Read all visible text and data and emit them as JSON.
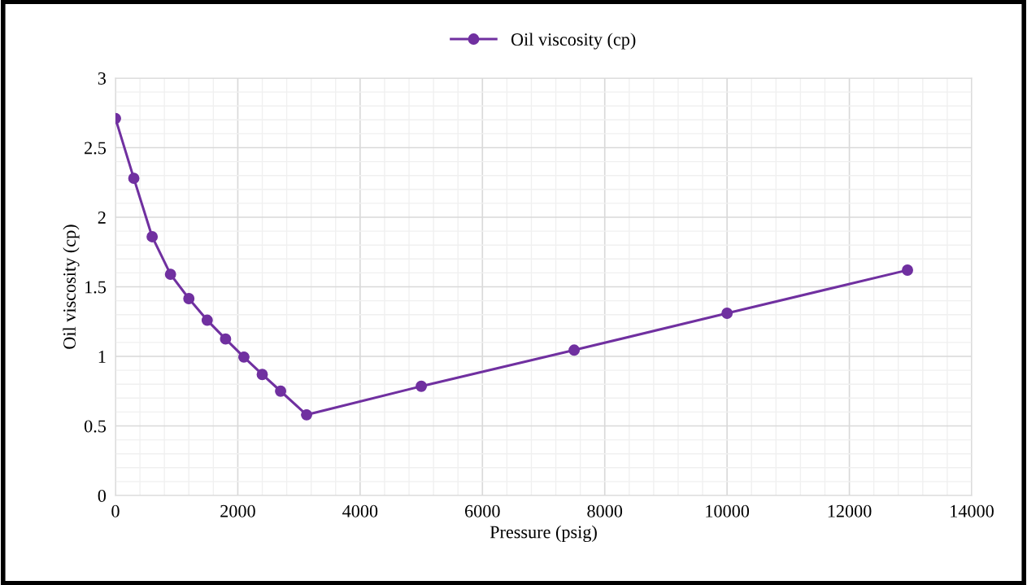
{
  "chart_data": {
    "type": "line",
    "xlabel": "Pressure (psig)",
    "ylabel": "Oil viscosity (cp)",
    "x": [
      0,
      300,
      600,
      900,
      1200,
      1500,
      1800,
      2100,
      2400,
      2700,
      3125,
      5000,
      7500,
      10000,
      12950
    ],
    "series": [
      {
        "name": "Oil viscosity (cp)",
        "color": "#7030a0",
        "values": [
          2.71,
          2.28,
          1.86,
          1.59,
          1.415,
          1.26,
          1.125,
          0.995,
          0.87,
          0.75,
          0.58,
          0.785,
          1.045,
          1.31,
          1.62
        ]
      }
    ],
    "xlim": [
      0,
      14000
    ],
    "xticks": [
      0,
      2000,
      4000,
      6000,
      8000,
      10000,
      12000,
      14000
    ],
    "ylim": [
      0,
      3
    ],
    "yticks": [
      0,
      0.5,
      1,
      1.5,
      2,
      2.5,
      3
    ],
    "grid": true,
    "legend": "top",
    "marker": "circle",
    "line_style": "solid"
  }
}
